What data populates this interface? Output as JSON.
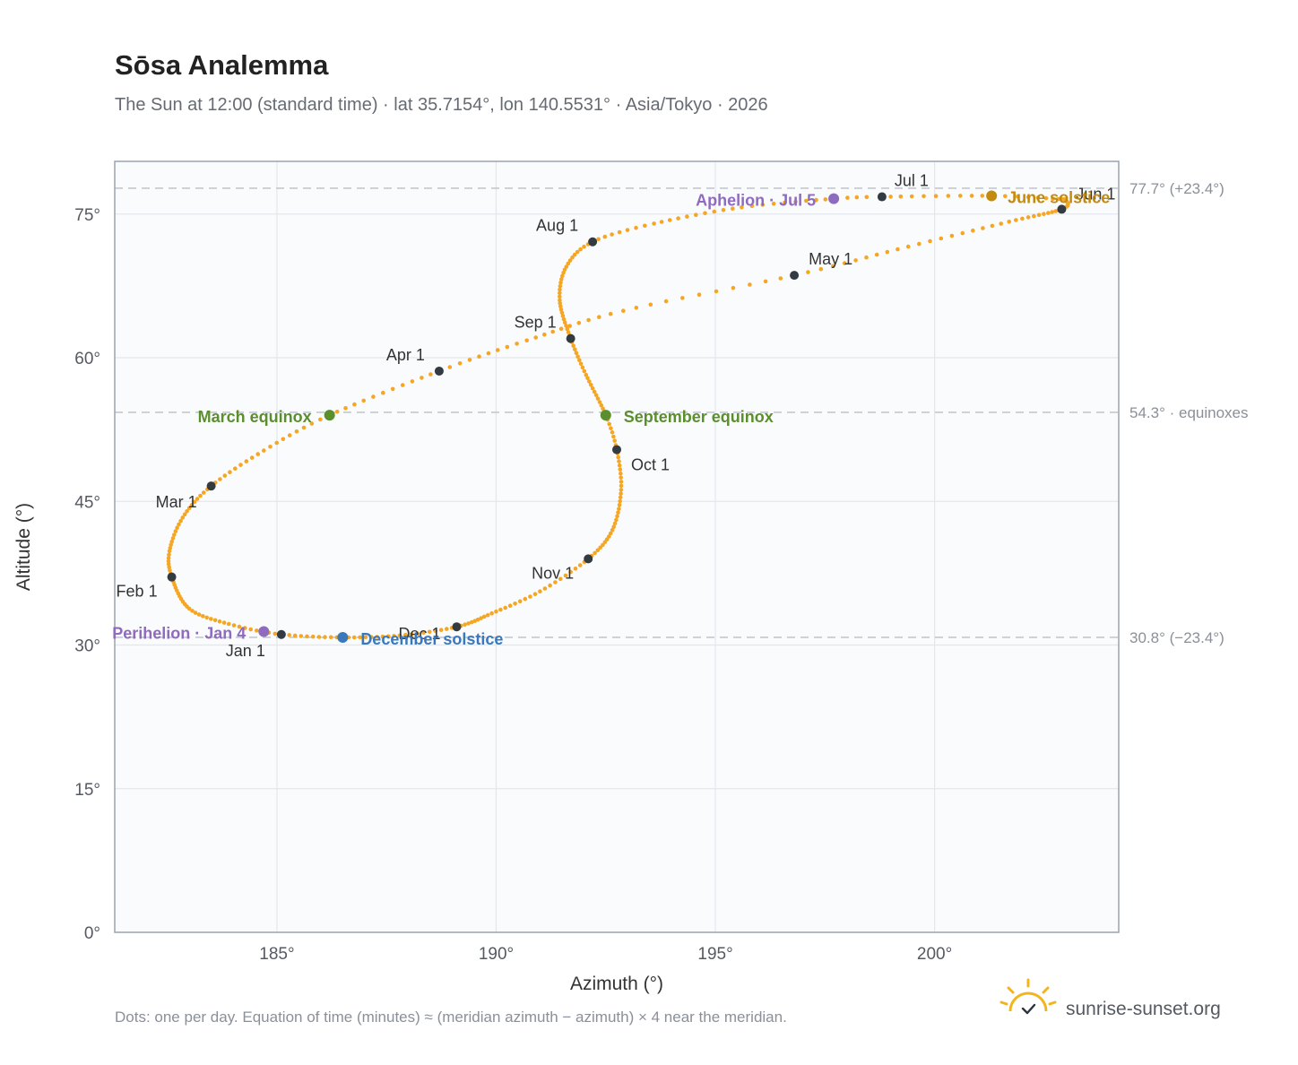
{
  "chart_data": {
    "type": "scatter",
    "title": "Sōsa Analemma",
    "subtitle": "The Sun at 12:00 (standard time) · lat 35.7154°, lon 140.5531° · Asia/Tokyo · 2026",
    "xlabel": "Azimuth (°)",
    "ylabel": "Altitude (°)",
    "xlim": [
      181.3,
      204.2
    ],
    "ylim": [
      0,
      80.5
    ],
    "x_ticks": [
      185,
      190,
      195,
      200
    ],
    "y_ticks": [
      0,
      15,
      30,
      45,
      60,
      75
    ],
    "x_tick_labels": [
      "185°",
      "190°",
      "195°",
      "200°"
    ],
    "y_tick_labels": [
      "0°",
      "15°",
      "30°",
      "45°",
      "60°",
      "75°"
    ],
    "grid": true,
    "series": [
      {
        "type": "line",
        "dotted": true,
        "color": "#f5a623",
        "anchors": [
          {
            "day": 1,
            "x": 185.1,
            "y": 31.1
          },
          {
            "day": 10,
            "x": 183.9,
            "y": 32.2
          },
          {
            "day": 20,
            "x": 183.0,
            "y": 33.8
          },
          {
            "day": 32,
            "x": 182.6,
            "y": 37.1
          },
          {
            "day": 40,
            "x": 182.55,
            "y": 39.8
          },
          {
            "day": 50,
            "x": 182.85,
            "y": 43.3
          },
          {
            "day": 60,
            "x": 183.5,
            "y": 46.6
          },
          {
            "day": 70,
            "x": 184.7,
            "y": 50.3
          },
          {
            "day": 79,
            "x": 186.2,
            "y": 54.0
          },
          {
            "day": 91,
            "x": 188.7,
            "y": 58.6
          },
          {
            "day": 100,
            "x": 190.7,
            "y": 61.8
          },
          {
            "day": 110,
            "x": 192.9,
            "y": 64.9
          },
          {
            "day": 121,
            "x": 196.8,
            "y": 68.6
          },
          {
            "day": 131,
            "x": 199.4,
            "y": 71.6
          },
          {
            "day": 141,
            "x": 201.7,
            "y": 74.2
          },
          {
            "day": 152,
            "x": 202.9,
            "y": 75.5
          },
          {
            "day": 160,
            "x": 203.0,
            "y": 76.4
          },
          {
            "day": 166,
            "x": 202.7,
            "y": 76.6
          },
          {
            "day": 172,
            "x": 201.3,
            "y": 76.9
          },
          {
            "day": 182,
            "x": 198.8,
            "y": 76.8
          },
          {
            "day": 186,
            "x": 197.7,
            "y": 76.6
          },
          {
            "day": 195,
            "x": 195.6,
            "y": 75.7
          },
          {
            "day": 205,
            "x": 193.6,
            "y": 74.0
          },
          {
            "day": 213,
            "x": 192.2,
            "y": 72.1
          },
          {
            "day": 222,
            "x": 191.6,
            "y": 69.5
          },
          {
            "day": 232,
            "x": 191.45,
            "y": 66.0
          },
          {
            "day": 244,
            "x": 191.7,
            "y": 62.0
          },
          {
            "day": 254,
            "x": 192.05,
            "y": 58.2
          },
          {
            "day": 266,
            "x": 192.5,
            "y": 54.0
          },
          {
            "day": 274,
            "x": 192.75,
            "y": 50.4
          },
          {
            "day": 284,
            "x": 192.85,
            "y": 46.2
          },
          {
            "day": 295,
            "x": 192.65,
            "y": 42.0
          },
          {
            "day": 305,
            "x": 192.1,
            "y": 39.0
          },
          {
            "day": 315,
            "x": 191.0,
            "y": 35.6
          },
          {
            "day": 325,
            "x": 189.9,
            "y": 33.3
          },
          {
            "day": 335,
            "x": 189.1,
            "y": 31.9
          },
          {
            "day": 345,
            "x": 187.8,
            "y": 31.0
          },
          {
            "day": 355,
            "x": 186.5,
            "y": 30.8
          },
          {
            "day": 365,
            "x": 185.15,
            "y": 31.1
          }
        ]
      }
    ],
    "months": [
      {
        "label": "Jan 1",
        "x": 185.1,
        "y": 31.1
      },
      {
        "label": "Feb 1",
        "x": 182.6,
        "y": 37.1
      },
      {
        "label": "Mar 1",
        "x": 183.5,
        "y": 46.6
      },
      {
        "label": "Apr 1",
        "x": 188.7,
        "y": 58.6
      },
      {
        "label": "May 1",
        "x": 196.8,
        "y": 68.6
      },
      {
        "label": "Jun 1",
        "x": 202.9,
        "y": 75.5
      },
      {
        "label": "Jul 1",
        "x": 198.8,
        "y": 76.8
      },
      {
        "label": "Aug 1",
        "x": 192.2,
        "y": 72.1
      },
      {
        "label": "Sep 1",
        "x": 191.7,
        "y": 62.0
      },
      {
        "label": "Oct 1",
        "x": 192.75,
        "y": 50.4
      },
      {
        "label": "Nov 1",
        "x": 192.1,
        "y": 39.0
      },
      {
        "label": "Dec 1",
        "x": 189.1,
        "y": 31.9
      }
    ],
    "events": [
      {
        "label": "Perihelion · Jan 4",
        "x": 184.7,
        "y": 31.4,
        "color": "#8e6bbf"
      },
      {
        "label": "March equinox",
        "x": 186.2,
        "y": 54.0,
        "color": "#5b8f2e"
      },
      {
        "label": "June solstice",
        "x": 201.3,
        "y": 76.9,
        "color": "#c48a0e"
      },
      {
        "label": "Aphelion · Jul 5",
        "x": 197.7,
        "y": 76.6,
        "color": "#8e6bbf"
      },
      {
        "label": "September equinox",
        "x": 192.5,
        "y": 54.0,
        "color": "#5b8f2e"
      },
      {
        "label": "December solstice",
        "x": 186.5,
        "y": 30.8,
        "color": "#3a78bd"
      }
    ],
    "reference_lines": [
      {
        "y": 77.7,
        "label": "77.7° (+23.4°)"
      },
      {
        "y": 54.3,
        "label": "54.3° · equinoxes"
      },
      {
        "y": 30.8,
        "label": "30.8° (−23.4°)"
      }
    ],
    "footnote": "Dots: one per day. Equation of time (minutes) ≈ (meridian azimuth − azimuth) × 4 near the meridian.",
    "brand": "sunrise-sunset.org"
  }
}
